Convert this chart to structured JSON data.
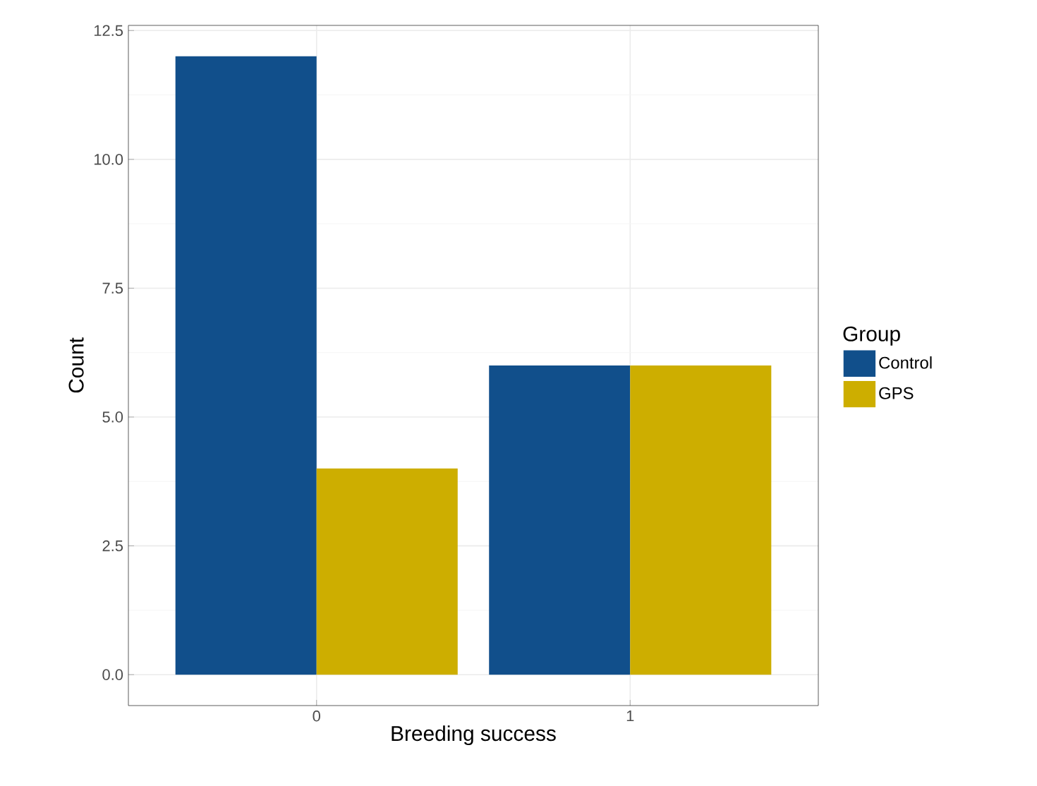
{
  "chart_data": {
    "type": "bar",
    "xlabel": "Breeding success",
    "ylabel": "Count",
    "legend_title": "Group",
    "categories": [
      "0",
      "1"
    ],
    "series": [
      {
        "name": "Control",
        "color": "#114f8b",
        "values": [
          12,
          6
        ]
      },
      {
        "name": "GPS",
        "color": "#cdae00",
        "values": [
          4,
          6
        ]
      }
    ],
    "ylim": [
      -0.6,
      12.6
    ],
    "yticks": [
      {
        "value": 0,
        "label": "0.0"
      },
      {
        "value": 2.5,
        "label": "2.5"
      },
      {
        "value": 5,
        "label": "5.0"
      },
      {
        "value": 7.5,
        "label": "7.5"
      },
      {
        "value": 10,
        "label": "10.0"
      },
      {
        "value": 12.5,
        "label": "12.5"
      }
    ],
    "grid": true,
    "legend": "right"
  }
}
